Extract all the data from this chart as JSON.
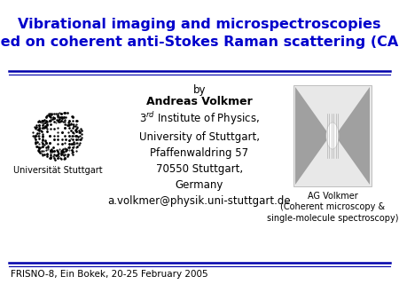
{
  "title_line1": "Vibrational imaging and microspectroscopies",
  "title_line2": "based on coherent anti-Stokes Raman scattering (CARS)",
  "title_color": "#0000CC",
  "title_fontsize": 11.5,
  "by_text": "by",
  "author_text": "Andreas Volkmer",
  "email_text": "a.volkmer@physik.uni-stuttgart.de",
  "uni_label": "Universität Stuttgart",
  "ag_label_lines": [
    "AG Volkmer",
    "(Coherent microscopy &",
    "single-molecule spectroscopy)"
  ],
  "footer_text": "FRISNO-8, Ein Bokek, 20-25 February 2005",
  "slide_bg": "#ffffff",
  "line_color": "#0000AA",
  "text_color": "#000000",
  "body_fontsize": 8.5,
  "small_fontsize": 7.0,
  "footer_fontsize": 7.5
}
